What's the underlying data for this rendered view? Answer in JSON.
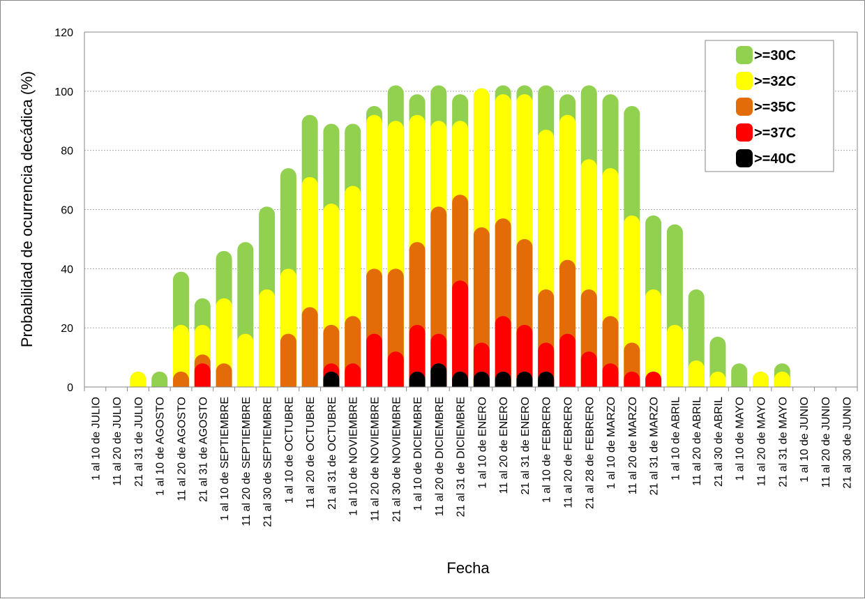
{
  "chart_data": {
    "type": "bar",
    "title": "",
    "xlabel": "Fecha",
    "ylabel": "Probabilidad de ocurrencia decádica (%)",
    "ylim": [
      0,
      120
    ],
    "yticks": [
      0,
      20,
      40,
      60,
      80,
      100,
      120
    ],
    "grid": true,
    "legend_position": "top-right",
    "categories": [
      "1 al 10 de JULIO",
      "11 al 20 de JULIO",
      "21 al 31 de JULIO",
      "1 al 10 de AGOSTO",
      "11 al 20 de AGOSTO",
      "21 al 31 de AGOSTO",
      "1 al 10 de SEPTIEMBRE",
      "11 al 20 de SEPTIEMBRE",
      "21 al 30 de SEPTIEMBRE",
      "1 al 10 de OCTUBRE",
      "11 al 20 de OCTUBRE",
      "21 al 31 de OCTUBRE",
      "1 al 10 de NOVIEMBRE",
      "11 al 20 de NOVIEMBRE",
      "21 al 30 de NOVIEMBRE",
      "1 al 10 de DICIEMBRE",
      "11 al 20 de DICIEMBRE",
      "21 al 31 de DICIEMBRE",
      "1 al 10 de ENERO",
      "11 al 20 de ENERO",
      "21 al 31 de ENERO",
      "1 al 10 de FEBRERO",
      "11 al 20 de FEBRERO",
      "21 al 28 de FEBRERO",
      "1 al 10 de MARZO",
      "11 al 20 de MARZO",
      "21 al 31 de MARZO",
      "1 al 10 de ABRIL",
      "11 al 20 de ABRIL",
      "21 al 30 de ABRIL",
      "1 al 10 de MAYO",
      "11 al 20 de MAYO",
      "21 al 31 de MAYO",
      "1 al 10 de JUNIO",
      "11 al 20 de JUNIO",
      "21 al 30 de JUNIO"
    ],
    "series": [
      {
        "name": ">=30C",
        "color": "#92d050",
        "values": [
          0,
          0,
          5,
          5,
          39,
          30,
          46,
          49,
          61,
          74,
          92,
          89,
          89,
          95,
          102,
          99,
          102,
          99,
          101,
          102,
          102,
          102,
          99,
          102,
          99,
          95,
          58,
          55,
          33,
          17,
          8,
          5,
          8,
          0,
          0,
          0
        ]
      },
      {
        "name": ">=32C",
        "color": "#ffff00",
        "values": [
          0,
          0,
          5,
          0,
          21,
          21,
          30,
          18,
          33,
          40,
          71,
          62,
          68,
          92,
          90,
          92,
          90,
          90,
          101,
          99,
          99,
          87,
          92,
          77,
          74,
          58,
          33,
          21,
          9,
          5,
          0,
          5,
          5,
          0,
          0,
          0
        ]
      },
      {
        "name": ">=35C",
        "color": "#e36c09",
        "values": [
          0,
          0,
          0,
          0,
          5,
          11,
          8,
          0,
          0,
          18,
          27,
          21,
          24,
          40,
          40,
          49,
          61,
          65,
          54,
          57,
          50,
          33,
          43,
          33,
          24,
          15,
          0,
          0,
          0,
          0,
          0,
          0,
          0,
          0,
          0,
          0
        ]
      },
      {
        "name": ">=37C",
        "color": "#ff0000",
        "values": [
          0,
          0,
          0,
          0,
          0,
          8,
          0,
          0,
          0,
          0,
          0,
          8,
          8,
          18,
          12,
          21,
          18,
          36,
          15,
          24,
          21,
          15,
          18,
          12,
          8,
          5,
          5,
          0,
          0,
          0,
          0,
          0,
          0,
          0,
          0,
          0
        ]
      },
      {
        "name": ">=40C",
        "color": "#000000",
        "values": [
          0,
          0,
          0,
          0,
          0,
          0,
          0,
          0,
          0,
          0,
          0,
          5,
          0,
          0,
          0,
          5,
          8,
          5,
          5,
          5,
          5,
          5,
          0,
          0,
          0,
          0,
          0,
          0,
          0,
          0,
          0,
          0,
          0,
          0,
          0,
          0
        ]
      }
    ]
  }
}
